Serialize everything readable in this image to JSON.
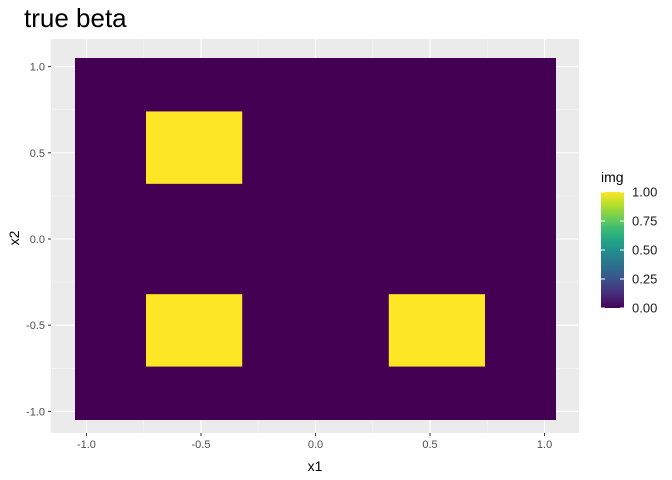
{
  "chart_data": {
    "type": "heatmap",
    "title": "true beta",
    "xlabel": "x1",
    "ylabel": "x2",
    "xlim": [
      -1.05,
      1.05
    ],
    "ylim": [
      -1.05,
      1.05
    ],
    "xticks": [
      -1.0,
      -0.5,
      0.0,
      0.5,
      1.0
    ],
    "xtick_labels": [
      "-1.0",
      "-0.5",
      "0.0",
      "0.5",
      "1.0"
    ],
    "yticks": [
      -1.0,
      -0.5,
      0.0,
      0.5,
      1.0
    ],
    "ytick_labels": [
      "-1.0",
      "-0.5",
      "0.0",
      "0.5",
      "1.0"
    ],
    "grid": true,
    "background_value": 0.0,
    "regions": [
      {
        "x": [
          -0.74,
          -0.32
        ],
        "y": [
          0.32,
          0.74
        ],
        "value": 1.0
      },
      {
        "x": [
          -0.74,
          -0.32
        ],
        "y": [
          -0.74,
          -0.32
        ],
        "value": 1.0
      },
      {
        "x": [
          0.32,
          0.74
        ],
        "y": [
          -0.74,
          -0.32
        ],
        "value": 1.0
      }
    ],
    "legend": {
      "title": "img",
      "position": "right",
      "range": [
        0.0,
        1.0
      ],
      "ticks": [
        1.0,
        0.75,
        0.5,
        0.25,
        0.0
      ],
      "tick_labels": [
        "1.00",
        "0.75",
        "0.50",
        "0.25",
        "0.00"
      ],
      "colormap": "viridis"
    },
    "colors": {
      "panel_background": "#ebebeb",
      "grid_major": "#ffffff",
      "grid_minor": "#f5f5f5",
      "low": "#440154",
      "high": "#fde725",
      "viridis": [
        "#440154",
        "#482878",
        "#3e4a89",
        "#31688e",
        "#26828e",
        "#1f9e89",
        "#35b779",
        "#6ece58",
        "#b5de2b",
        "#fde725"
      ]
    }
  }
}
